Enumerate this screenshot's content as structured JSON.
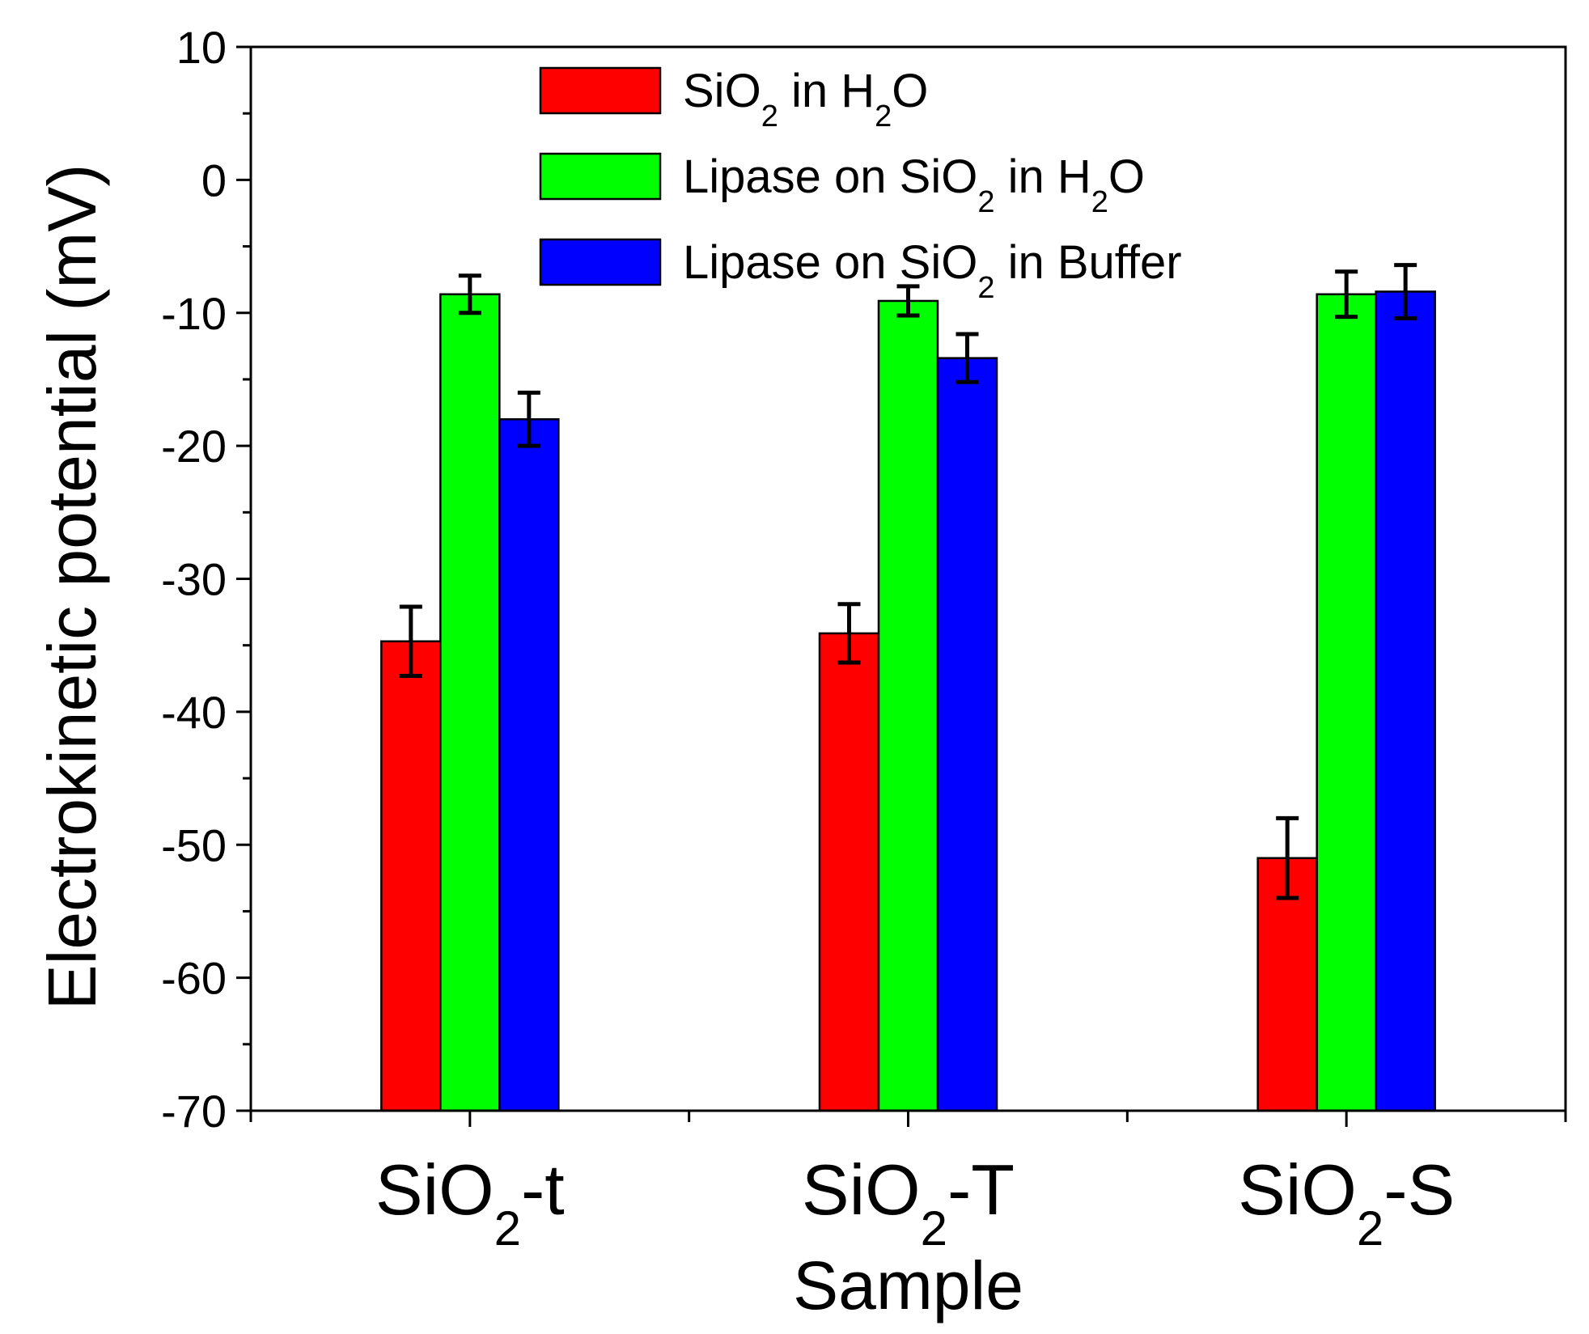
{
  "chart_data": {
    "type": "bar",
    "ylabel": "Electrokinetic potential (mV)",
    "xlabel": "Sample",
    "ylim": [
      -70,
      10
    ],
    "yticks": [
      10,
      0,
      -10,
      -20,
      -30,
      -40,
      -50,
      -60,
      -70
    ],
    "ytick_labels": [
      "10",
      "0",
      "-10",
      "-20",
      "-30",
      "-40",
      "-50",
      "-60",
      "-70"
    ],
    "categories": [
      {
        "base": "SiO",
        "sub": "2",
        "suffix": "-t"
      },
      {
        "base": "SiO",
        "sub": "2",
        "suffix": "-T"
      },
      {
        "base": "SiO",
        "sub": "2",
        "suffix": "-S"
      }
    ],
    "series": [
      {
        "name": "SiO2 in H2O",
        "color": "#ff0000",
        "legend_parts": [
          [
            "SiO",
            ""
          ],
          [
            "2",
            "sub"
          ],
          [
            " in H",
            ""
          ],
          [
            "2",
            "sub"
          ],
          [
            "O",
            ""
          ]
        ],
        "values": [
          -34.7,
          -34.1,
          -51.0
        ],
        "errors": [
          2.6,
          2.2,
          3.0
        ]
      },
      {
        "name": "Lipase on SiO2 in H2O",
        "color": "#00ff00",
        "legend_parts": [
          [
            "Lipase on SiO",
            ""
          ],
          [
            "2",
            "sub"
          ],
          [
            " in H",
            ""
          ],
          [
            "2",
            "sub"
          ],
          [
            "O",
            ""
          ]
        ],
        "values": [
          -8.6,
          -9.1,
          -8.6
        ],
        "errors": [
          1.4,
          1.1,
          1.7
        ]
      },
      {
        "name": "Lipase on SiO2 in Buffer",
        "color": "#0000ff",
        "legend_parts": [
          [
            "Lipase on SiO",
            ""
          ],
          [
            "2",
            "sub"
          ],
          [
            " in Buffer",
            ""
          ]
        ],
        "values": [
          -18.0,
          -13.4,
          -8.4
        ],
        "errors": [
          2.0,
          1.8,
          2.0
        ]
      }
    ],
    "legend_position": "top-center",
    "grid": false
  }
}
